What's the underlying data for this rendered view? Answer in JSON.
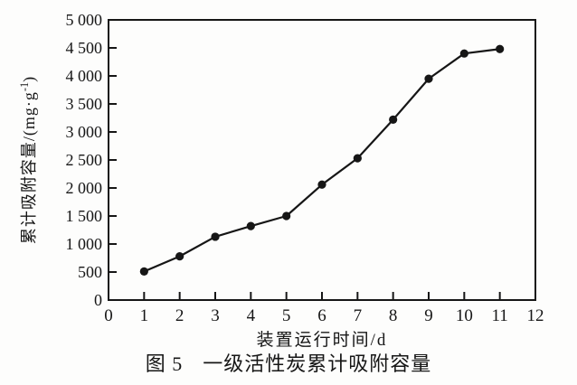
{
  "chart_data": {
    "type": "line",
    "caption_label": "图 5",
    "caption_title": "一级活性炭累计吸附容量",
    "xlabel": "装置运行时间/d",
    "ylabel": "累计吸附容量/(mg·g⁻¹)",
    "ylabel_parts": {
      "main": "累计吸附容量/(mg·g",
      "sup": "-1",
      "close": ")"
    },
    "x": [
      1,
      2,
      3,
      4,
      5,
      6,
      7,
      8,
      9,
      10,
      11
    ],
    "values": [
      510,
      780,
      1130,
      1320,
      1500,
      2060,
      2530,
      3220,
      3950,
      4400,
      4480
    ],
    "series_name": "一级活性炭累计吸附容量",
    "xlim": [
      0,
      12
    ],
    "ylim": [
      0,
      5000
    ],
    "x_tick_step": 1,
    "y_tick_step": 500,
    "x_tick_labels": [
      "0",
      "1",
      "2",
      "3",
      "4",
      "5",
      "6",
      "7",
      "8",
      "9",
      "10",
      "11",
      "12"
    ],
    "y_tick_labels": [
      "0",
      "500",
      "1 000",
      "1 500",
      "2 000",
      "2 500",
      "3 000",
      "3 500",
      "4 000",
      "4 500",
      "5 000"
    ],
    "grid": false,
    "legend": "none",
    "marker": "filled-circle",
    "line_color": "#161616",
    "marker_color": "#161616",
    "axis_color": "#161616",
    "background": "#fdfdfc"
  }
}
